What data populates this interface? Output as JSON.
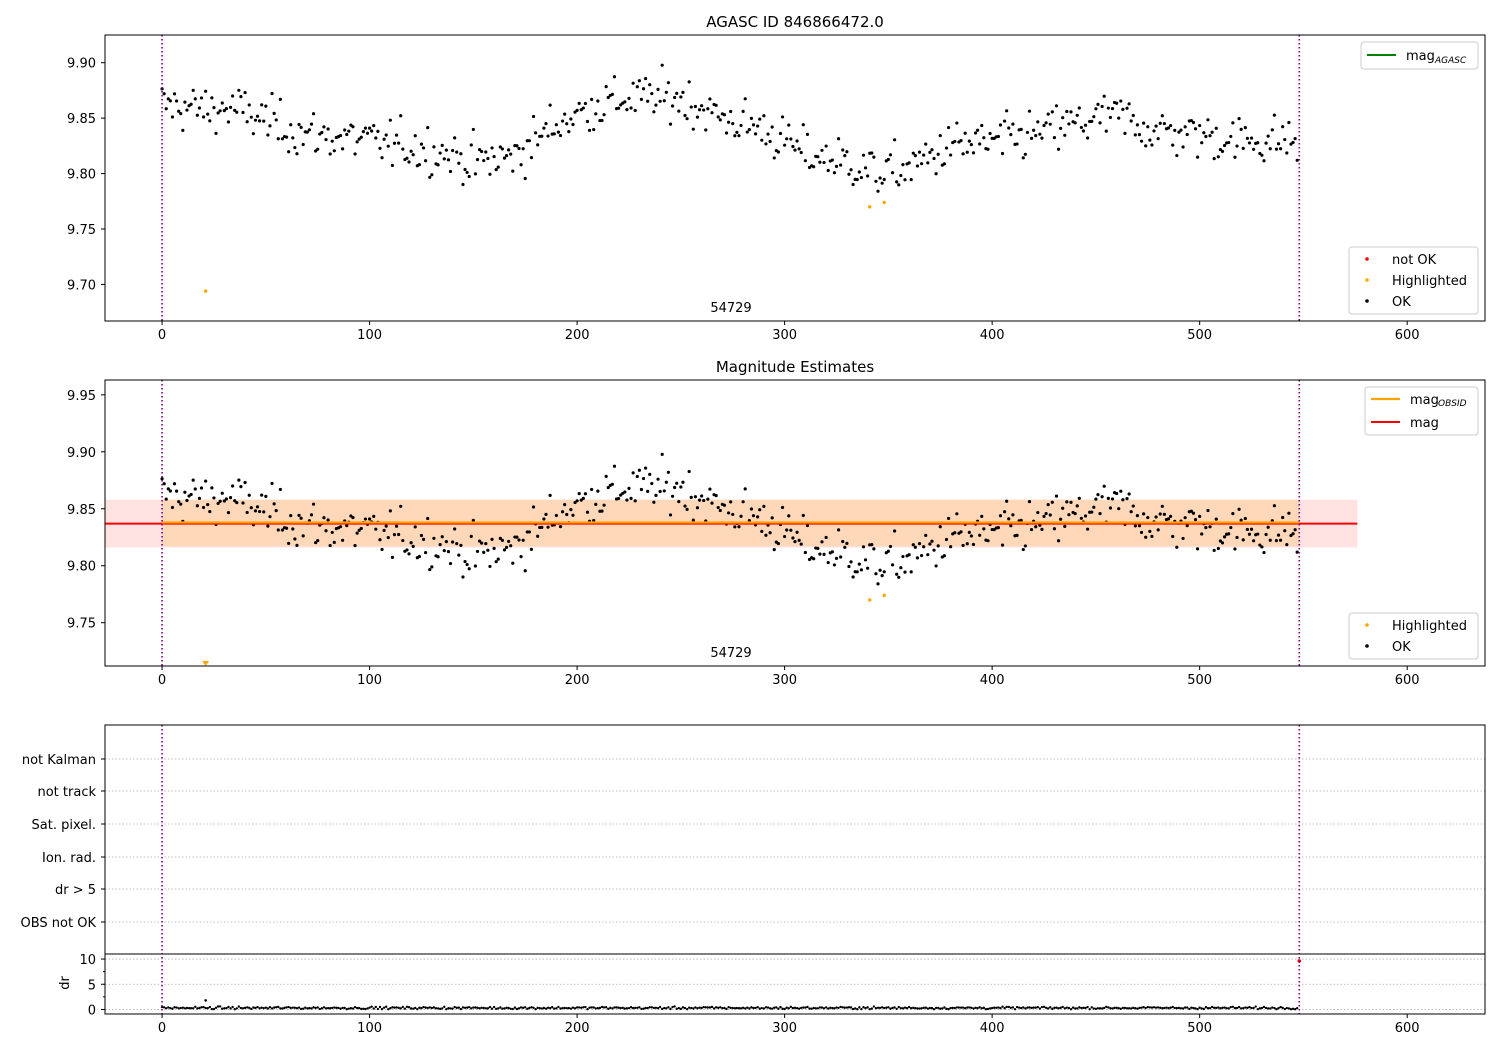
{
  "chart_data": [
    {
      "type": "scatter",
      "title": "AGASC ID 846866472.0",
      "xlim": [
        -27.5,
        637.5
      ],
      "ylim": [
        9.667,
        9.925
      ],
      "x_ticks": [
        0,
        100,
        200,
        300,
        400,
        500,
        600
      ],
      "y_ticks": [
        9.7,
        9.75,
        9.8,
        9.85,
        9.9
      ],
      "obsid_boundaries": [
        0,
        548
      ],
      "obsid_labels": [
        {
          "x": 274,
          "text": "54729"
        }
      ],
      "legend_lines": [
        {
          "name": "mag",
          "subscript": "AGASC",
          "color": "#008000"
        }
      ],
      "legend_points": [
        {
          "name": "not OK",
          "color": "#ff0000"
        },
        {
          "name": "Highlighted",
          "color": "#ffa500"
        },
        {
          "name": "OK",
          "color": "#000000"
        }
      ],
      "agasc_mag": null,
      "series": [
        {
          "name": "OK",
          "color": "#000000",
          "n_points": 548,
          "x_range": [
            0,
            547
          ],
          "mean": 9.837,
          "noise": 0.012,
          "trend_knots": [
            [
              0,
              9.862
            ],
            [
              20,
              9.858
            ],
            [
              35,
              9.858
            ],
            [
              50,
              9.848
            ],
            [
              70,
              9.835
            ],
            [
              90,
              9.832
            ],
            [
              110,
              9.826
            ],
            [
              130,
              9.822
            ],
            [
              150,
              9.81
            ],
            [
              170,
              9.816
            ],
            [
              190,
              9.845
            ],
            [
              210,
              9.862
            ],
            [
              225,
              9.868
            ],
            [
              250,
              9.868
            ],
            [
              270,
              9.85
            ],
            [
              290,
              9.84
            ],
            [
              310,
              9.818
            ],
            [
              330,
              9.81
            ],
            [
              345,
              9.8
            ],
            [
              360,
              9.805
            ],
            [
              380,
              9.825
            ],
            [
              400,
              9.828
            ],
            [
              420,
              9.835
            ],
            [
              440,
              9.845
            ],
            [
              460,
              9.852
            ],
            [
              480,
              9.838
            ],
            [
              500,
              9.835
            ],
            [
              520,
              9.83
            ],
            [
              547,
              9.83
            ]
          ]
        },
        {
          "name": "Highlighted",
          "color": "#ffa500",
          "points": [
            [
              21,
              9.694
            ],
            [
              341,
              9.77
            ],
            [
              348,
              9.774
            ]
          ]
        }
      ]
    },
    {
      "type": "scatter",
      "title": "Magnitude Estimates",
      "xlim": [
        -27.5,
        637.5
      ],
      "ylim": [
        9.712,
        9.963
      ],
      "x_ticks": [
        0,
        100,
        200,
        300,
        400,
        500,
        600
      ],
      "y_ticks": [
        9.75,
        9.8,
        9.85,
        9.9,
        9.95
      ],
      "obsid_boundaries": [
        0,
        548
      ],
      "obsid_labels": [
        {
          "x": 274,
          "text": "54729"
        }
      ],
      "legend_lines": [
        {
          "name": "mag",
          "subscript": "OBSID",
          "color": "#ffa500"
        },
        {
          "name": "mag",
          "subscript": "",
          "color": "#ff0000"
        }
      ],
      "legend_points": [
        {
          "name": "Highlighted",
          "color": "#ffa500"
        },
        {
          "name": "OK",
          "color": "#000000"
        }
      ],
      "mag": {
        "value": 9.837,
        "band": [
          9.816,
          9.858
        ],
        "x_range": [
          -27.5,
          576
        ]
      },
      "mag_obsid": {
        "value": 9.838,
        "band": [
          9.817,
          9.858
        ],
        "x_range": [
          0,
          548
        ]
      },
      "series": [
        {
          "name": "OK",
          "color": "#000000",
          "same_as_panel": 0
        },
        {
          "name": "Highlighted",
          "color": "#ffa500",
          "points": [
            [
              341,
              9.77
            ],
            [
              348,
              9.774
            ]
          ],
          "below_axis_marker_x": 21
        }
      ]
    },
    {
      "type": "scatter",
      "title": "",
      "xlim": [
        -27.5,
        637.5
      ],
      "x_ticks": [
        0,
        100,
        200,
        300,
        400,
        500,
        600
      ],
      "flag_rows": [
        "not Kalman",
        "not track",
        "Sat. pixel.",
        "Ion. rad.",
        "dr > 5",
        "OBS not OK"
      ],
      "obsid_boundaries": [
        0,
        548
      ],
      "dr": {
        "ylabel": "dr",
        "y_ticks": [
          0,
          5,
          10
        ],
        "ylim": [
          -0.9,
          11
        ],
        "n_points": 548,
        "typical": 0.3,
        "outliers": [
          [
            21,
            1.8
          ],
          [
            548,
            9.6
          ]
        ]
      }
    }
  ]
}
